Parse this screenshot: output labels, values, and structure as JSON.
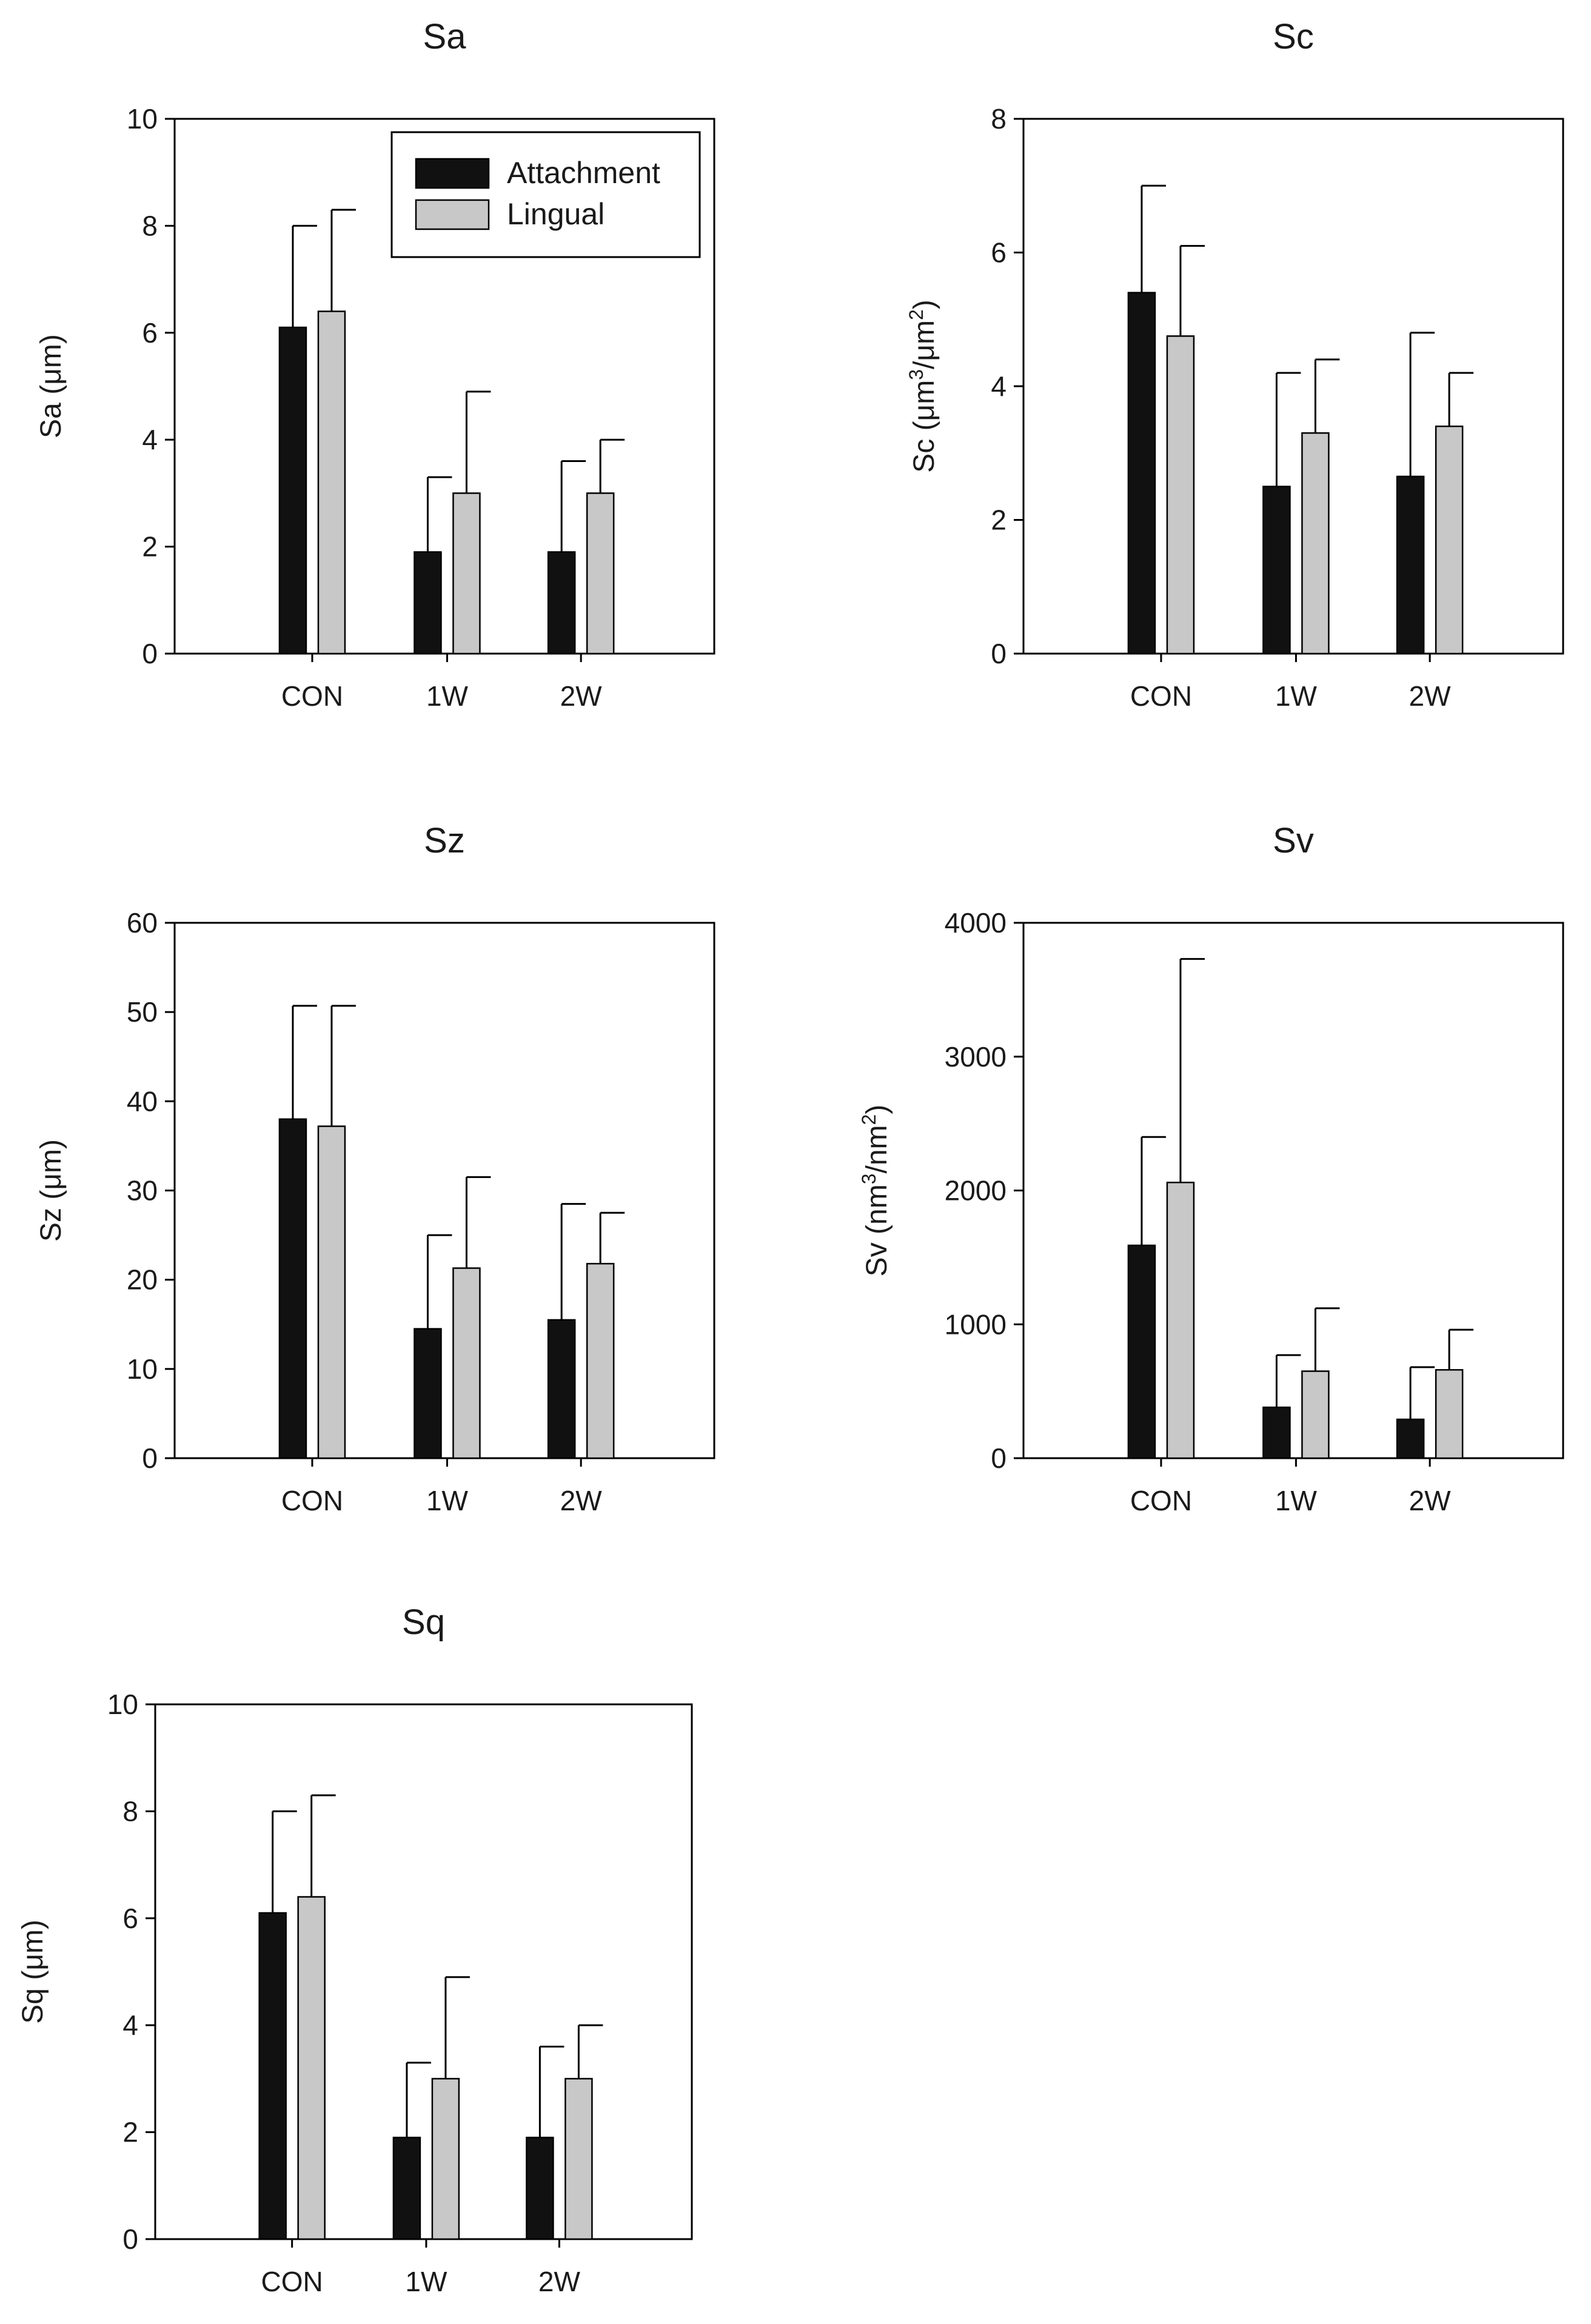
{
  "figure": {
    "background": "#ffffff"
  },
  "colors": {
    "attachment": "#111111",
    "lingual": "#c8c8c8",
    "axis": "#000000"
  },
  "legend": {
    "placement": "top-right of first panel",
    "entries": [
      {
        "series": "attachment",
        "label": "Attachment"
      },
      {
        "series": "lingual",
        "label": "Lingual"
      }
    ]
  },
  "chart_data": [
    {
      "id": "sa",
      "type": "bar",
      "title": "Sa",
      "ylabel_parts": [
        {
          "t": "Sa (μm)"
        }
      ],
      "ylim": [
        0,
        10
      ],
      "yticks": [
        0,
        2,
        4,
        6,
        8,
        10
      ],
      "categories": [
        "CON",
        "1W",
        "2W"
      ],
      "series": [
        {
          "name": "Attachment",
          "key": "attachment",
          "values": [
            6.1,
            1.9,
            1.9
          ],
          "errors": [
            1.9,
            1.4,
            1.7
          ]
        },
        {
          "name": "Lingual",
          "key": "lingual",
          "values": [
            6.4,
            3.0,
            3.0
          ],
          "errors": [
            1.9,
            1.9,
            1.0
          ]
        }
      ]
    },
    {
      "id": "sc",
      "type": "bar",
      "title": "Sc",
      "ylabel_parts": [
        {
          "t": "Sc (μm"
        },
        {
          "t": "3",
          "sup": true
        },
        {
          "t": "/μm"
        },
        {
          "t": "2",
          "sup": true
        },
        {
          "t": ")"
        }
      ],
      "ylim": [
        0,
        8
      ],
      "yticks": [
        0,
        2,
        4,
        6,
        8
      ],
      "categories": [
        "CON",
        "1W",
        "2W"
      ],
      "series": [
        {
          "name": "Attachment",
          "key": "attachment",
          "values": [
            5.4,
            2.5,
            2.65
          ],
          "errors": [
            1.6,
            1.7,
            2.15
          ]
        },
        {
          "name": "Lingual",
          "key": "lingual",
          "values": [
            4.75,
            3.3,
            3.4
          ],
          "errors": [
            1.35,
            1.1,
            0.8
          ]
        }
      ]
    },
    {
      "id": "sz",
      "type": "bar",
      "title": "Sz",
      "ylabel_parts": [
        {
          "t": "Sz (μm)"
        }
      ],
      "ylim": [
        0,
        60
      ],
      "yticks": [
        0,
        10,
        20,
        30,
        40,
        50,
        60
      ],
      "categories": [
        "CON",
        "1W",
        "2W"
      ],
      "series": [
        {
          "name": "Attachment",
          "key": "attachment",
          "values": [
            38,
            14.5,
            15.5
          ],
          "errors": [
            12.7,
            10.5,
            13
          ]
        },
        {
          "name": "Lingual",
          "key": "lingual",
          "values": [
            37.2,
            21.3,
            21.8
          ],
          "errors": [
            13.5,
            10.2,
            5.7
          ]
        }
      ]
    },
    {
      "id": "sv",
      "type": "bar",
      "title": "Sv",
      "ylabel_parts": [
        {
          "t": "Sv (nm"
        },
        {
          "t": "3",
          "sup": true
        },
        {
          "t": "/nm"
        },
        {
          "t": "2",
          "sup": true
        },
        {
          "t": ")"
        }
      ],
      "ylim": [
        0,
        4000
      ],
      "yticks": [
        0,
        1000,
        2000,
        3000,
        4000
      ],
      "categories": [
        "CON",
        "1W",
        "2W"
      ],
      "series": [
        {
          "name": "Attachment",
          "key": "attachment",
          "values": [
            1590,
            380,
            290
          ],
          "errors": [
            810,
            390,
            390
          ]
        },
        {
          "name": "Lingual",
          "key": "lingual",
          "values": [
            2060,
            650,
            660
          ],
          "errors": [
            1670,
            470,
            300
          ]
        }
      ]
    },
    {
      "id": "sq",
      "type": "bar",
      "title": "Sq",
      "ylabel_parts": [
        {
          "t": "Sq (μm)"
        }
      ],
      "ylim": [
        0,
        10
      ],
      "yticks": [
        0,
        2,
        4,
        6,
        8,
        10
      ],
      "categories": [
        "CON",
        "1W",
        "2W"
      ],
      "series": [
        {
          "name": "Attachment",
          "key": "attachment",
          "values": [
            6.1,
            1.9,
            1.9
          ],
          "errors": [
            1.9,
            1.4,
            1.7
          ]
        },
        {
          "name": "Lingual",
          "key": "lingual",
          "values": [
            6.4,
            3.0,
            3.0
          ],
          "errors": [
            1.9,
            1.9,
            1.0
          ]
        }
      ]
    }
  ]
}
